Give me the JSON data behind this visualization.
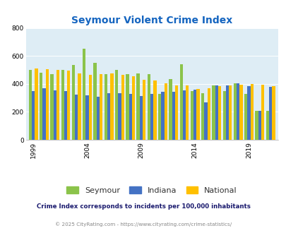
{
  "title": "Seymour Violent Crime Index",
  "years": [
    1999,
    2000,
    2001,
    2002,
    2003,
    2004,
    2005,
    2006,
    2007,
    2008,
    2009,
    2010,
    2011,
    2012,
    2013,
    2014,
    2015,
    2016,
    2017,
    2018,
    2019,
    2020,
    2021
  ],
  "seymour": [
    500,
    480,
    470,
    500,
    535,
    650,
    550,
    470,
    500,
    470,
    475,
    470,
    330,
    435,
    540,
    350,
    335,
    390,
    350,
    405,
    330,
    205,
    205
  ],
  "indiana": [
    350,
    370,
    355,
    350,
    325,
    320,
    310,
    335,
    335,
    330,
    315,
    330,
    345,
    345,
    355,
    360,
    270,
    390,
    390,
    405,
    385,
    205,
    380
  ],
  "national": [
    510,
    505,
    500,
    495,
    475,
    465,
    470,
    475,
    465,
    455,
    430,
    425,
    405,
    390,
    390,
    365,
    370,
    385,
    390,
    395,
    400,
    395,
    385
  ],
  "colors": {
    "seymour": "#8bc34a",
    "indiana": "#4472c4",
    "national": "#ffc000"
  },
  "ylim": [
    0,
    800
  ],
  "yticks": [
    0,
    200,
    400,
    600,
    800
  ],
  "xtick_years": [
    1999,
    2004,
    2009,
    2014,
    2019
  ],
  "bg_color": "#deedf5",
  "title_color": "#1565c0",
  "legend_labels": [
    "Seymour",
    "Indiana",
    "National"
  ],
  "footnote1": "Crime Index corresponds to incidents per 100,000 inhabitants",
  "footnote2": "© 2025 CityRating.com - https://www.cityrating.com/crime-statistics/",
  "footnote1_color": "#1a1a6e",
  "footnote2_color": "#888888"
}
